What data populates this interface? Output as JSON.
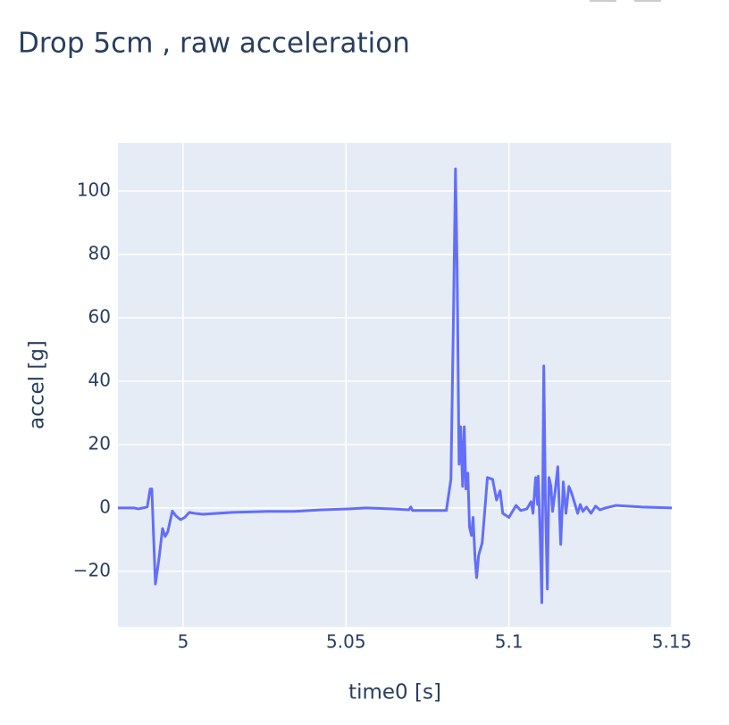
{
  "chart_data": {
    "type": "line",
    "title": "Drop 5cm , raw acceleration",
    "x_label": "time0 [s]",
    "y_label": "accel [g]",
    "color": "#636efa",
    "grid": true,
    "xlim": [
      4.98,
      5.15
    ],
    "xticks": [
      5,
      5.05,
      5.1,
      5.15
    ],
    "ylim": [
      -37.5,
      115.2
    ],
    "yticks": [
      {
        "value": -20,
        "label": "−20"
      },
      0,
      20,
      40,
      60,
      80,
      100
    ],
    "x": [
      4.98,
      4.9849,
      4.9863,
      4.9877,
      4.989,
      4.9899,
      4.9904,
      4.9915,
      4.9926,
      4.9937,
      4.9945,
      4.9953,
      4.9967,
      4.9978,
      4.9992,
      5.0005,
      5.0019,
      5.0036,
      5.006,
      5.0151,
      5.026,
      5.0342,
      5.0425,
      5.0507,
      5.0562,
      5.0644,
      5.0693,
      5.0699,
      5.0704,
      5.0808,
      5.0822,
      5.083,
      5.0836,
      5.0841,
      5.0847,
      5.0852,
      5.0858,
      5.0863,
      5.0868,
      5.0874,
      5.0879,
      5.0885,
      5.089,
      5.0896,
      5.0901,
      5.0907,
      5.0918,
      5.0934,
      5.095,
      5.0962,
      5.0973,
      5.0981,
      5.1,
      5.1022,
      5.1036,
      5.1055,
      5.1068,
      5.1074,
      5.1082,
      5.1088,
      5.109,
      5.1096,
      5.1101,
      5.1107,
      5.1112,
      5.1118,
      5.1123,
      5.1129,
      5.1134,
      5.1142,
      5.115,
      5.1159,
      5.1167,
      5.1175,
      5.1184,
      5.1192,
      5.1203,
      5.1211,
      5.1219,
      5.1227,
      5.1238,
      5.1252,
      5.1266,
      5.1279,
      5.1296,
      5.1329,
      5.141,
      5.15
    ],
    "values": [
      0,
      0,
      -0.3,
      0,
      0.3,
      6,
      6,
      -24,
      -16,
      -6.5,
      -9,
      -7.5,
      -1,
      -2.5,
      -3.7,
      -3,
      -1.4,
      -1.7,
      -2,
      -1.4,
      -1.1,
      -1.1,
      -0.6,
      -0.3,
      0,
      -0.3,
      -0.6,
      0.3,
      -0.8,
      -0.8,
      9,
      61.7,
      107,
      75.8,
      13.8,
      25.6,
      6.8,
      25.6,
      6,
      11,
      -6,
      -8.7,
      -3,
      -15.8,
      -22,
      -15,
      -11,
      9.6,
      9,
      2.5,
      5.4,
      -1.7,
      -3,
      0.8,
      -0.8,
      -0.3,
      2,
      -1.7,
      9.6,
      1.1,
      10,
      -8.7,
      -29.9,
      44.8,
      2.5,
      -25.6,
      9.6,
      6.8,
      -1.1,
      5.4,
      13,
      -11.5,
      8.2,
      -1.7,
      6.8,
      4.8,
      1.1,
      -1.7,
      1.1,
      -1.1,
      0.3,
      -1.7,
      0.6,
      -0.6,
      0,
      0.8,
      0.3,
      0
    ]
  }
}
